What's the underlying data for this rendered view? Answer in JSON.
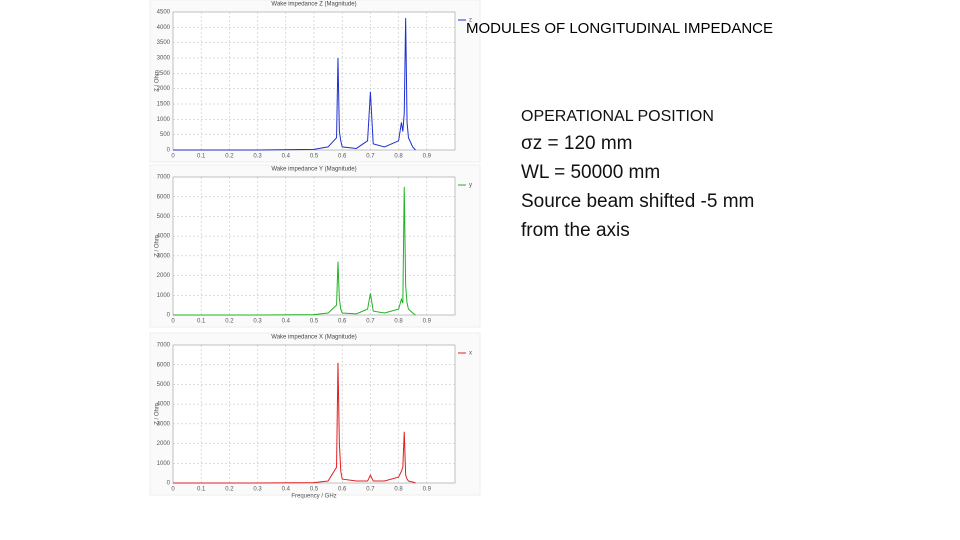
{
  "heading": "MODULES OF LONGITUDINAL IMPEDANCE",
  "details": [
    "OPERATIONAL POSITION",
    "σz = 120  mm",
    "WL = 50000 mm",
    "Source beam shifted -5 mm",
    "from the axis"
  ],
  "chart_data": [
    {
      "type": "line",
      "title": "Wake impedance Z (Magnitude)",
      "ylabel": "Z / Ohm",
      "xlim": [
        0,
        1
      ],
      "xticks": [
        0,
        0.1,
        0.2,
        0.3,
        0.4,
        0.5,
        0.6,
        0.7,
        0.8,
        0.9
      ],
      "ylim": [
        0,
        4500
      ],
      "yticks": [
        0,
        500,
        1000,
        1500,
        2000,
        2500,
        3000,
        3500,
        4000,
        4500
      ],
      "grid": true,
      "x": [
        0,
        0.3,
        0.5,
        0.55,
        0.58,
        0.585,
        0.59,
        0.595,
        0.6,
        0.65,
        0.69,
        0.7,
        0.71,
        0.75,
        0.8,
        0.81,
        0.815,
        0.82,
        0.825,
        0.83,
        0.835,
        0.85,
        0.86
      ],
      "series": [
        {
          "name": "z",
          "color": "#1f2fd0",
          "values": [
            0,
            0,
            20,
            100,
            400,
            3000,
            600,
            300,
            100,
            50,
            300,
            1900,
            200,
            100,
            300,
            900,
            600,
            1200,
            4300,
            900,
            400,
            100,
            0
          ]
        }
      ]
    },
    {
      "type": "line",
      "title": "Wake impedance Y (Magnitude)",
      "ylabel": "Z / Ohm",
      "xlim": [
        0,
        1
      ],
      "xticks": [
        0,
        0.1,
        0.2,
        0.3,
        0.4,
        0.5,
        0.6,
        0.7,
        0.8,
        0.9
      ],
      "ylim": [
        0,
        7000
      ],
      "yticks": [
        0,
        1000,
        2000,
        3000,
        4000,
        5000,
        6000,
        7000
      ],
      "grid": true,
      "x": [
        0,
        0.3,
        0.5,
        0.55,
        0.58,
        0.585,
        0.59,
        0.595,
        0.6,
        0.65,
        0.69,
        0.7,
        0.71,
        0.75,
        0.8,
        0.81,
        0.815,
        0.82,
        0.825,
        0.83,
        0.835,
        0.85,
        0.86
      ],
      "series": [
        {
          "name": "y",
          "color": "#22b322",
          "values": [
            0,
            0,
            20,
            100,
            500,
            2700,
            800,
            300,
            100,
            60,
            300,
            1100,
            200,
            100,
            300,
            800,
            600,
            6500,
            1500,
            600,
            300,
            100,
            0
          ]
        }
      ]
    },
    {
      "type": "line",
      "title": "Wake impedance X (Magnitude)",
      "ylabel": "Z / Ohm",
      "xlabel": "Frequency / GHz",
      "xlim": [
        0,
        1
      ],
      "xticks": [
        0,
        0.1,
        0.2,
        0.3,
        0.4,
        0.5,
        0.6,
        0.7,
        0.8,
        0.9
      ],
      "ylim": [
        0,
        7000
      ],
      "yticks": [
        0,
        1000,
        2000,
        3000,
        4000,
        5000,
        6000,
        7000
      ],
      "grid": true,
      "x": [
        0,
        0.3,
        0.5,
        0.55,
        0.58,
        0.585,
        0.59,
        0.595,
        0.6,
        0.65,
        0.69,
        0.7,
        0.71,
        0.75,
        0.8,
        0.81,
        0.815,
        0.82,
        0.825,
        0.83,
        0.835,
        0.85,
        0.86
      ],
      "series": [
        {
          "name": "x",
          "color": "#e02020",
          "values": [
            0,
            0,
            20,
            100,
            800,
            6100,
            2000,
            600,
            200,
            100,
            100,
            400,
            100,
            100,
            300,
            600,
            800,
            2600,
            400,
            200,
            100,
            50,
            0
          ]
        }
      ]
    }
  ]
}
